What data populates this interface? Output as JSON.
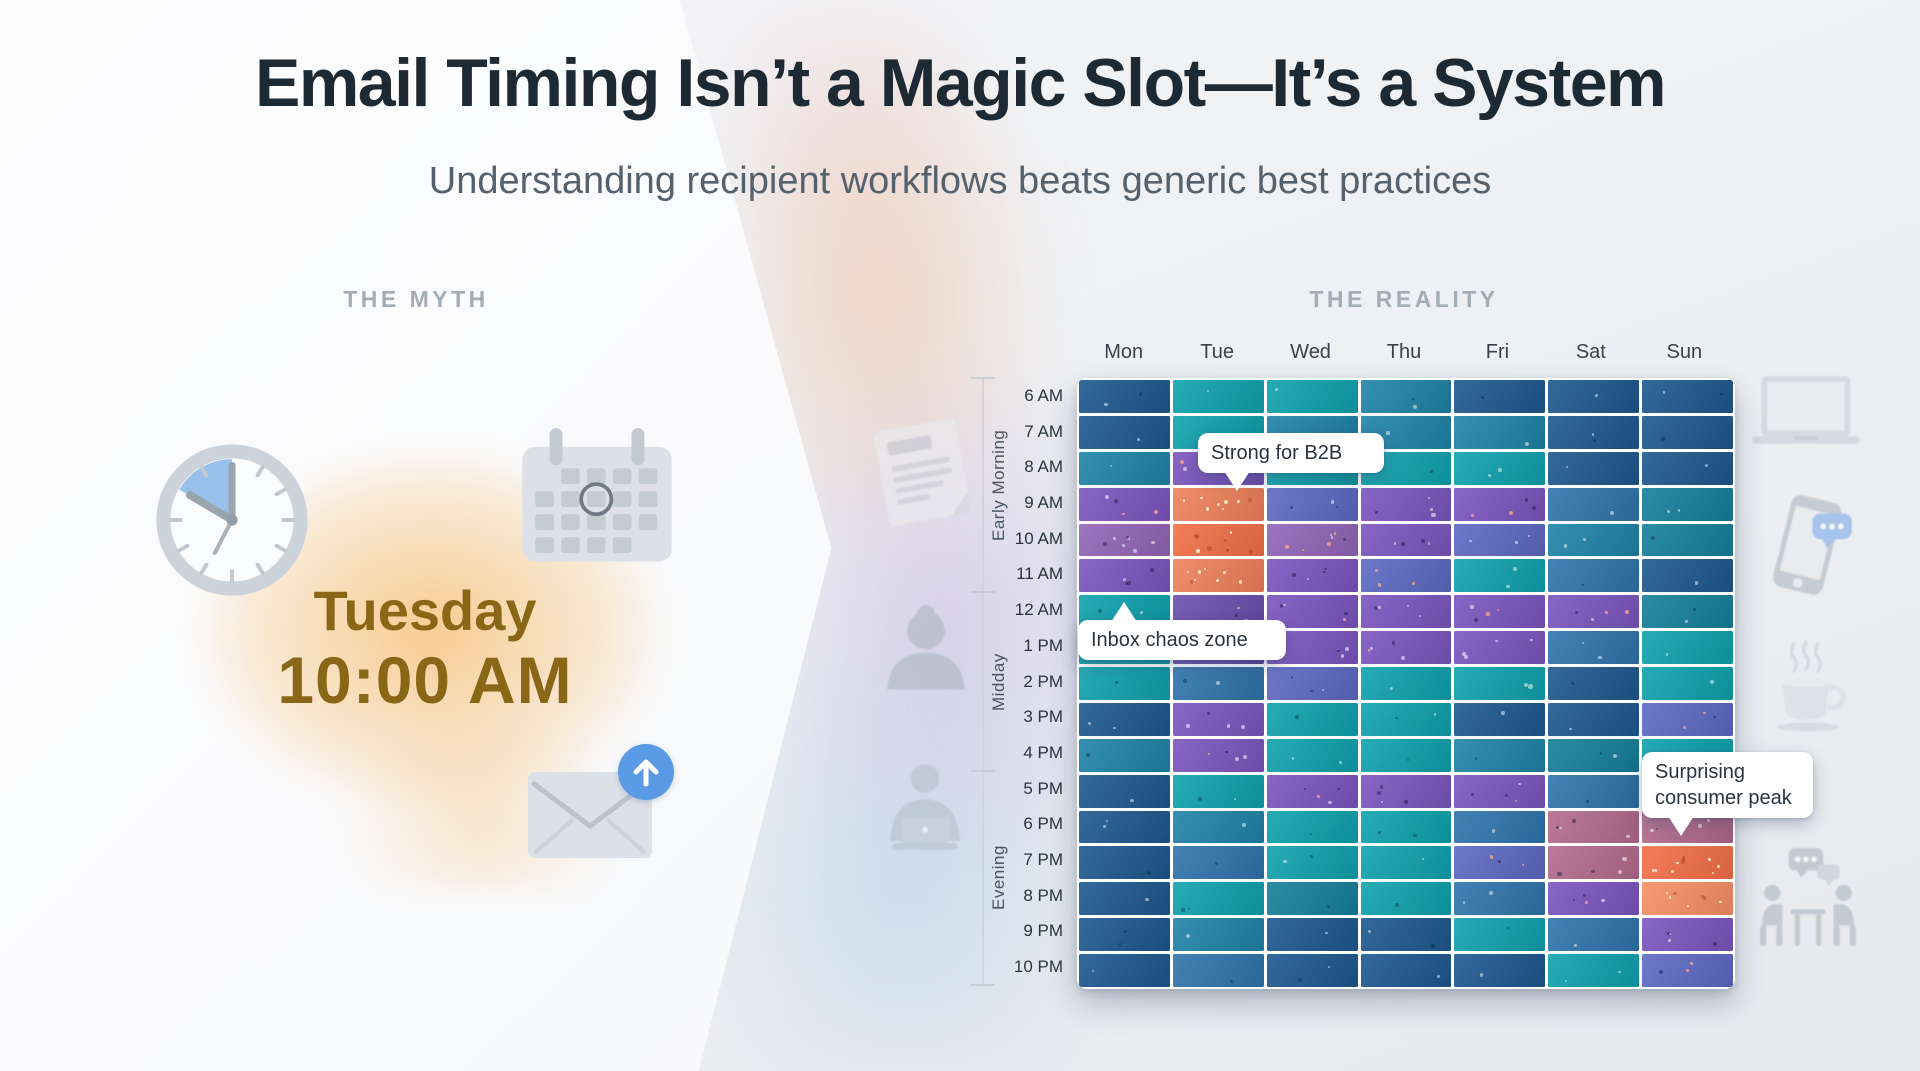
{
  "page": {
    "title": "Email Timing Isn’t a Magic Slot—It’s a System",
    "subtitle": "Understanding recipient workflows beats generic best practices"
  },
  "myth": {
    "label": "THE MYTH",
    "day": "Tuesday",
    "time": "10:00 AM",
    "accent_text_color": "#8a6716",
    "glow_color": "#f2a33b",
    "icons": [
      "clock-icon",
      "calendar-icon",
      "envelope-icon",
      "send-arrow-icon"
    ]
  },
  "reality": {
    "label": "THE REALITY",
    "left_icons": [
      "document-icon",
      "person-icon",
      "person-at-laptop-icon"
    ],
    "right_icons": [
      "laptop-icon",
      "phone-chat-icon",
      "coffee-icon",
      "meeting-icon"
    ]
  },
  "chart_data": {
    "type": "heatmap",
    "columns": [
      "Mon",
      "Tue",
      "Wed",
      "Thu",
      "Fri",
      "Sat",
      "Sun"
    ],
    "rows": [
      "6 AM",
      "7 AM",
      "8 AM",
      "9 AM",
      "10 AM",
      "11 AM",
      "12 AM",
      "1 PM",
      "2 PM",
      "3 PM",
      "4 PM",
      "5 PM",
      "6 PM",
      "7 PM",
      "8 PM",
      "9 PM",
      "10 PM"
    ],
    "row_groups": [
      {
        "label": "Early Morning",
        "from_row": "6 AM",
        "to_row": "11 AM"
      },
      {
        "label": "Midday",
        "from_row": "12 AM",
        "to_row": "4 PM"
      },
      {
        "label": "Evening",
        "from_row": "5 PM",
        "to_row": "10 PM"
      }
    ],
    "palette": {
      "DB": "#1d5890",
      "B": "#2f74ad",
      "TB": "#1f83a8",
      "DT": "#157f9b",
      "T": "#0fa2ae",
      "DP": "#6a4fae",
      "P": "#7b55c0",
      "BP": "#5c69c3",
      "PM": "#9165b8",
      "M": "#b36b8d",
      "O": "#f46f48",
      "SO": "#f0815a",
      "LO": "#f79064"
    },
    "cells": [
      [
        "DB",
        "T",
        "T",
        "TB",
        "DB",
        "DB",
        "DB"
      ],
      [
        "DB",
        "T",
        "TB",
        "TB",
        "TB",
        "DB",
        "DB"
      ],
      [
        "TB",
        "P",
        "T",
        "T",
        "T",
        "DB",
        "DB"
      ],
      [
        "P",
        "SO",
        "BP",
        "P",
        "P",
        "B",
        "DT"
      ],
      [
        "PM",
        "O",
        "PM",
        "P",
        "BP",
        "TB",
        "DT"
      ],
      [
        "P",
        "SO",
        "P",
        "BP",
        "T",
        "B",
        "DB"
      ],
      [
        "T",
        "DP",
        "P",
        "P",
        "P",
        "P",
        "DT"
      ],
      [
        "T",
        "DP",
        "P",
        "P",
        "P",
        "B",
        "T"
      ],
      [
        "T",
        "B",
        "BP",
        "T",
        "T",
        "DB",
        "T"
      ],
      [
        "DB",
        "P",
        "T",
        "T",
        "DB",
        "DB",
        "BP"
      ],
      [
        "TB",
        "P",
        "T",
        "T",
        "TB",
        "DT",
        "T"
      ],
      [
        "DB",
        "T",
        "P",
        "P",
        "P",
        "B",
        "BP"
      ],
      [
        "DB",
        "TB",
        "T",
        "T",
        "B",
        "M",
        "M"
      ],
      [
        "DB",
        "B",
        "T",
        "T",
        "BP",
        "M",
        "O"
      ],
      [
        "DB",
        "T",
        "DT",
        "T",
        "B",
        "P",
        "LO"
      ],
      [
        "DB",
        "TB",
        "DB",
        "DB",
        "T",
        "B",
        "P"
      ],
      [
        "DB",
        "B",
        "DB",
        "DB",
        "DB",
        "T",
        "BP"
      ]
    ],
    "annotations": [
      {
        "id": "strong-b2b",
        "text": "Strong for B2B",
        "target_col": "Tue",
        "target_row": "9 AM",
        "pointer": "down"
      },
      {
        "id": "inbox-chaos",
        "text": "Inbox chaos zone",
        "target_col": "Mon",
        "target_row": "11 AM",
        "pointer": "up"
      },
      {
        "id": "consumer-peak",
        "text": "Surprising consumer peak",
        "target_col": "Sun",
        "target_row": "6 PM",
        "pointer": "down"
      }
    ],
    "legend": "none",
    "note": "Color encodes engagement intensity (no numeric scale shown); cells carry decorative speckle dots."
  }
}
